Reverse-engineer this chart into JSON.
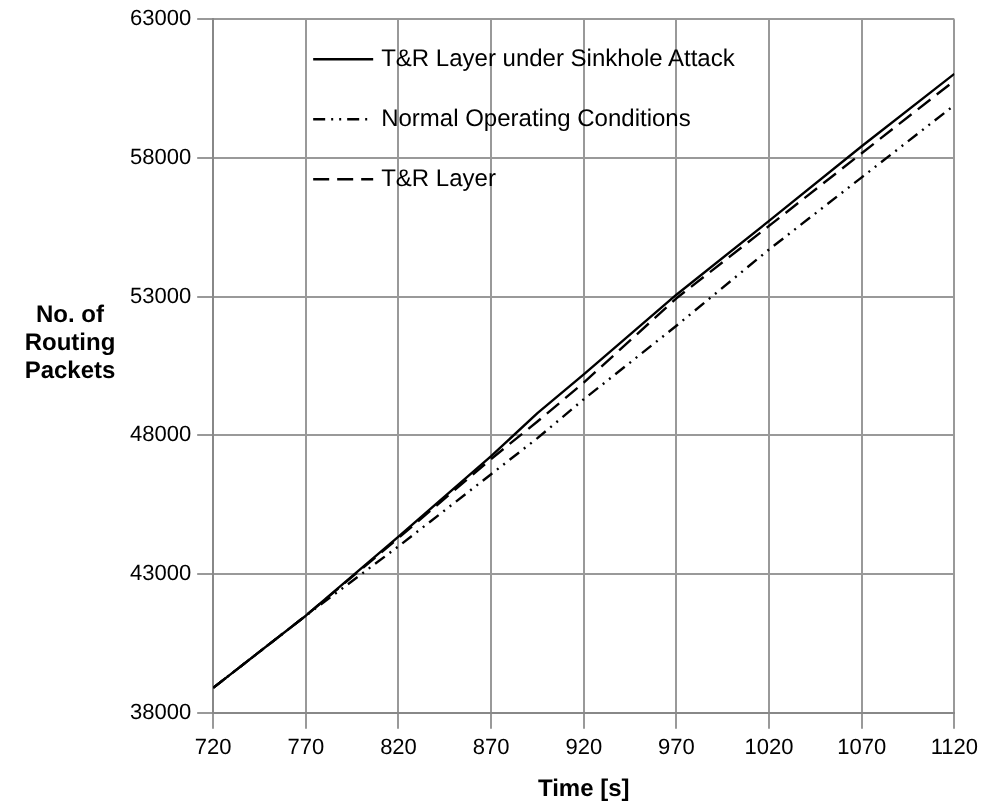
{
  "chart_data": {
    "type": "line",
    "xlabel": "Time [s]",
    "ylabel": "No. of Routing Packets",
    "x": [
      720,
      770,
      820,
      870,
      895,
      920,
      970,
      1020,
      1070,
      1120
    ],
    "xlim": [
      720,
      1120
    ],
    "xticks": [
      720,
      770,
      820,
      870,
      920,
      970,
      1020,
      1070,
      1120
    ],
    "ylim": [
      38000,
      63000
    ],
    "yticks": [
      38000,
      43000,
      48000,
      53000,
      58000,
      63000
    ],
    "grid": true,
    "legend": "top left",
    "marker": "none",
    "series": [
      {
        "name": "T&R Layer under Sinkhole Attack",
        "color": "#000000",
        "line_style": "solid",
        "values": [
          38900,
          41500,
          44350,
          47250,
          48800,
          50200,
          53070,
          55730,
          58420,
          61030
        ]
      },
      {
        "name": "Normal Operating Conditions",
        "color": "#000000",
        "line_style": "dashdot",
        "values": [
          38900,
          41500,
          44000,
          46600,
          47900,
          49300,
          51950,
          54700,
          57300,
          59900
        ]
      },
      {
        "name": "T&R Layer",
        "color": "#000000",
        "line_style": "dashed",
        "values": [
          38900,
          41500,
          44300,
          47150,
          48500,
          49900,
          52940,
          55550,
          58170,
          60780
        ]
      }
    ]
  }
}
